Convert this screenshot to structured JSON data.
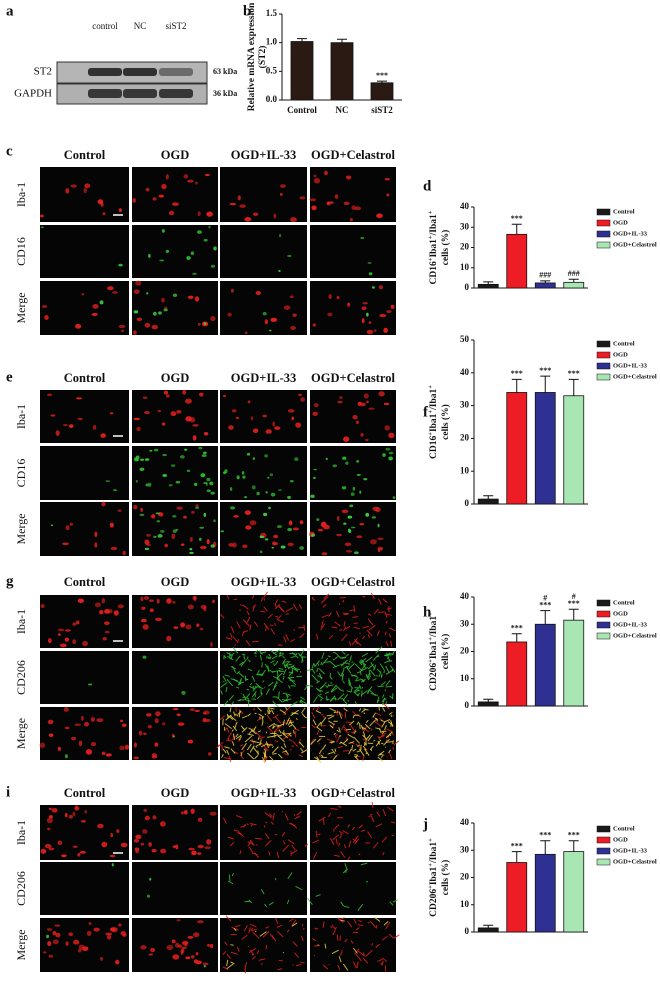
{
  "blot": {
    "letter": "a",
    "lanes": [
      "control",
      "NC",
      "siST2"
    ],
    "proteins": [
      "ST2",
      "GAPDH"
    ],
    "sizes": [
      "63 kDa",
      "36 kDa"
    ]
  },
  "image_panels": [
    {
      "letter": "c",
      "columns": [
        "Control",
        "OGD",
        "OGD+IL-33",
        "OGD+Celastrol"
      ],
      "rows": [
        "Iba-1",
        "CD16",
        "Merge"
      ]
    },
    {
      "letter": "e",
      "columns": [
        "Control",
        "OGD",
        "OGD+IL-33",
        "OGD+Celastrol"
      ],
      "rows": [
        "Iba-1",
        "CD16",
        "Merge"
      ]
    },
    {
      "letter": "g",
      "columns": [
        "Control",
        "OGD",
        "OGD+IL-33",
        "OGD+Celastrol"
      ],
      "rows": [
        "Iba-1",
        "CD206",
        "Merge"
      ]
    },
    {
      "letter": "i",
      "columns": [
        "Control",
        "OGD",
        "OGD+IL-33",
        "OGD+Celastrol"
      ],
      "rows": [
        "Iba-1",
        "CD206",
        "Merge"
      ]
    }
  ],
  "chart_data": [
    {
      "type": "bar",
      "letter": "b",
      "ylabel": [
        "Relative mRNA expression",
        "(ST2)"
      ],
      "categories": [
        "Control",
        "NC",
        "siST2"
      ],
      "values": [
        1.02,
        1.0,
        0.3
      ],
      "errors": [
        0.05,
        0.06,
        0.03
      ],
      "colors": [
        "#2b1a14",
        "#2b1a14",
        "#2b1a14"
      ],
      "annotations": [
        null,
        null,
        [
          "***"
        ]
      ],
      "ylim": [
        0,
        1.5
      ],
      "yticks": [
        {
          "value": 0,
          "label": "0.0"
        },
        {
          "value": 0.5,
          "label": "0.5"
        },
        {
          "value": 1.0,
          "label": "1.0"
        },
        {
          "value": 1.5,
          "label": "1.5"
        }
      ],
      "xtick_labels": true,
      "legend": false
    },
    {
      "type": "bar",
      "letter": "d",
      "ylabel": [
        [
          "CD16",
          "+",
          "Iba1",
          "+",
          "/Iba1",
          "+"
        ],
        "cells (%)"
      ],
      "categories": [
        "Control",
        "OGD",
        "OGD+IL-33",
        "OGD+Celastrol"
      ],
      "values": [
        1.8,
        26.5,
        2.5,
        2.8
      ],
      "errors": [
        1.2,
        5,
        1,
        1.5
      ],
      "colors": [
        "#1a1a1a",
        "#ee1c24",
        "#2e3192",
        "#a8e6b4"
      ],
      "annotations": [
        null,
        [
          "***"
        ],
        [
          "###"
        ],
        [
          "###"
        ]
      ],
      "ylim": [
        0,
        40
      ],
      "yticks": [
        0,
        10,
        20,
        30,
        40
      ],
      "xtick_labels": false,
      "legend": true
    },
    {
      "type": "bar",
      "letter": "f",
      "ylabel": [
        [
          "CD16",
          "+",
          "Iba1",
          "+",
          "/Iba1",
          "+"
        ],
        "cells (%)"
      ],
      "categories": [
        "Control",
        "OGD",
        "OGD+IL-33",
        "OGD+Celastrol"
      ],
      "values": [
        1.5,
        34,
        34,
        33
      ],
      "errors": [
        1,
        4,
        5,
        5
      ],
      "colors": [
        "#1a1a1a",
        "#ee1c24",
        "#2e3192",
        "#a8e6b4"
      ],
      "annotations": [
        null,
        [
          "***"
        ],
        [
          "***"
        ],
        [
          "***"
        ]
      ],
      "ylim": [
        0,
        50
      ],
      "yticks": [
        0,
        10,
        20,
        30,
        40,
        50
      ],
      "xtick_labels": false,
      "legend": true
    },
    {
      "type": "bar",
      "letter": "h",
      "ylabel": [
        [
          "CD206",
          "+",
          "Iba1",
          "+",
          "/Iba1",
          "+"
        ],
        "cells (%)"
      ],
      "categories": [
        "Control",
        "OGD",
        "OGD+IL-33",
        "OGD+Celastrol"
      ],
      "values": [
        1.5,
        23.5,
        30,
        31.5
      ],
      "errors": [
        1,
        3,
        5,
        4
      ],
      "colors": [
        "#1a1a1a",
        "#ee1c24",
        "#2e3192",
        "#a8e6b4"
      ],
      "annotations": [
        null,
        [
          "***"
        ],
        [
          "#",
          "***"
        ],
        [
          "#",
          "***"
        ]
      ],
      "ylim": [
        0,
        40
      ],
      "yticks": [
        0,
        10,
        20,
        30,
        40
      ],
      "xtick_labels": false,
      "legend": true
    },
    {
      "type": "bar",
      "letter": "j",
      "ylabel": [
        [
          "CD206",
          "+",
          "Iba1",
          "+",
          "/Iba1",
          "+"
        ],
        "cells (%)"
      ],
      "categories": [
        "Control",
        "OGD",
        "OGD+IL-33",
        "OGD+Celastrol"
      ],
      "values": [
        1.5,
        25.5,
        28.5,
        29.5
      ],
      "errors": [
        1,
        4,
        5,
        4
      ],
      "colors": [
        "#1a1a1a",
        "#ee1c24",
        "#2e3192",
        "#a8e6b4"
      ],
      "annotations": [
        null,
        [
          "***"
        ],
        [
          "***"
        ],
        [
          "***"
        ]
      ],
      "ylim": [
        0,
        40
      ],
      "yticks": [
        0,
        10,
        20,
        30,
        40
      ],
      "xtick_labels": false,
      "legend": true
    }
  ]
}
